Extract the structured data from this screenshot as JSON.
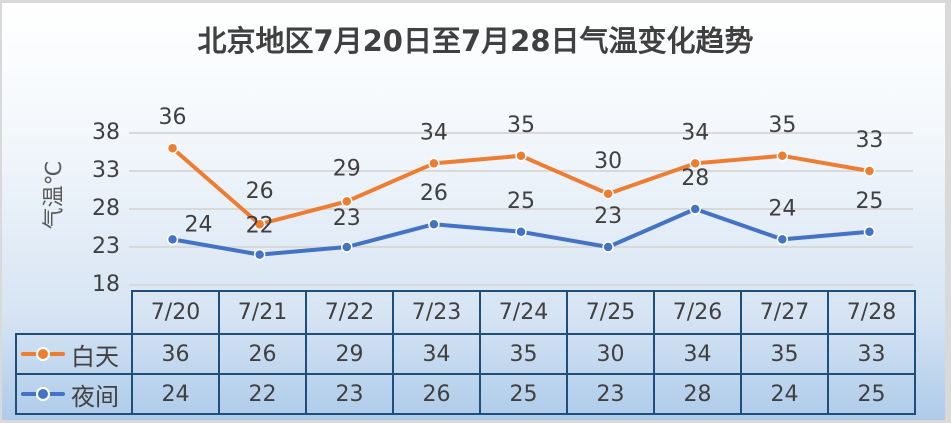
{
  "title": "北京地区7月20日至7月28日气温变化趋势",
  "y_axis_label": "气温℃",
  "y_ticks": [
    "38",
    "33",
    "28",
    "23",
    "18"
  ],
  "colors": {
    "day": "#ed7d31",
    "night": "#4472c4",
    "grid": "#d9d9d9",
    "table_border": "#1f4e79",
    "text": "#404040"
  },
  "table": {
    "categories": [
      "7/20",
      "7/21",
      "7/22",
      "7/23",
      "7/24",
      "7/25",
      "7/26",
      "7/27",
      "7/28"
    ],
    "rows": [
      {
        "legend": "白天",
        "values": [
          "36",
          "26",
          "29",
          "34",
          "35",
          "30",
          "34",
          "35",
          "33"
        ]
      },
      {
        "legend": "夜间",
        "values": [
          "24",
          "22",
          "23",
          "26",
          "25",
          "23",
          "28",
          "24",
          "25"
        ]
      }
    ]
  },
  "chart_data": {
    "type": "line",
    "title": "北京地区7月20日至7月28日气温变化趋势",
    "xlabel": "",
    "ylabel": "气温℃",
    "categories": [
      "7/20",
      "7/21",
      "7/22",
      "7/23",
      "7/24",
      "7/25",
      "7/26",
      "7/27",
      "7/28"
    ],
    "series": [
      {
        "name": "白天",
        "color": "#ed7d31",
        "values": [
          36,
          26,
          29,
          34,
          35,
          30,
          34,
          35,
          33
        ]
      },
      {
        "name": "夜间",
        "color": "#4472c4",
        "values": [
          24,
          22,
          23,
          26,
          25,
          23,
          28,
          24,
          25
        ]
      }
    ],
    "ylim": [
      18,
      38
    ],
    "yticks": [
      18,
      23,
      28,
      33,
      38
    ],
    "grid": true,
    "data_labels": true,
    "legend_position": "data-table"
  }
}
